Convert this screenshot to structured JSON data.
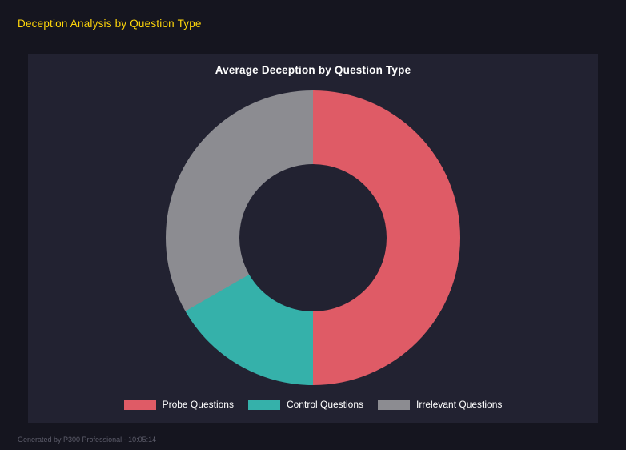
{
  "header": {
    "title": "Deception Analysis by Question Type"
  },
  "chart_data": {
    "type": "pie",
    "variant": "donut",
    "title": "Average Deception by Question Type",
    "labels": [
      "Probe Questions",
      "Control Questions",
      "Irrelevant Questions"
    ],
    "values": [
      50,
      16.7,
      33.3
    ],
    "colors": [
      "#df5b66",
      "#35b1aa",
      "#8c8c91"
    ],
    "start_angle_deg": 0,
    "direction": "clockwise",
    "hole_ratio": 0.5,
    "legend_position": "bottom"
  },
  "footer": {
    "text": "Generated by P300 Professional - 10:05:14"
  },
  "colors": {
    "page_background": "#15151f",
    "panel_background": "#222231",
    "header_title": "#ffd60a",
    "chart_title": "#ffffff",
    "legend_text": "#ffffff",
    "footer_text": "#5d5d6b"
  }
}
